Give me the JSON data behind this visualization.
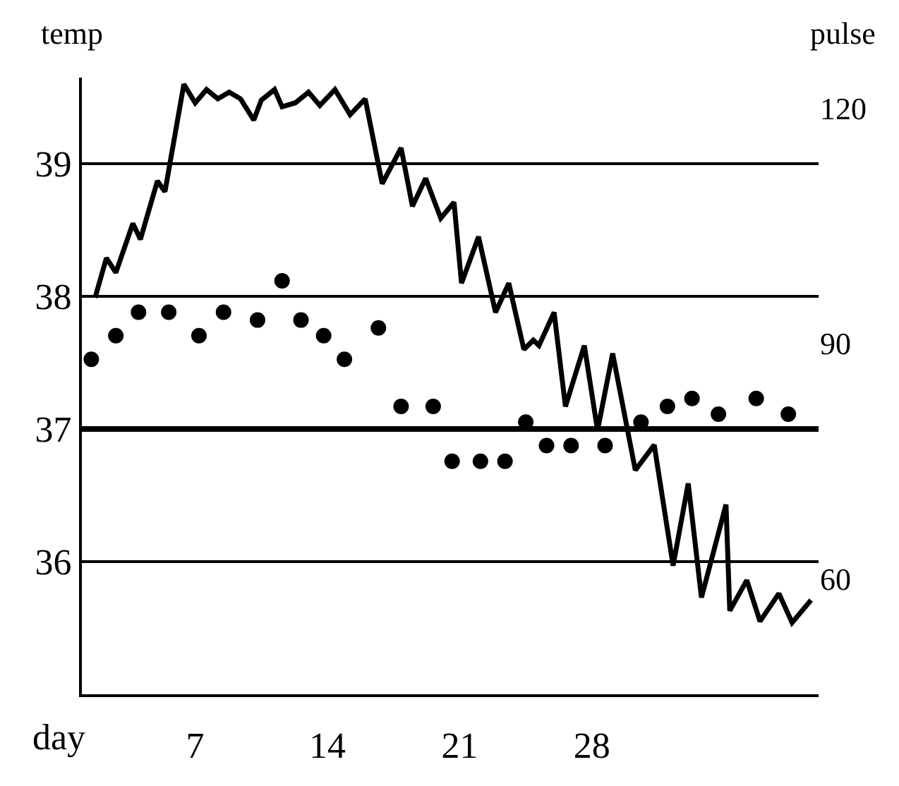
{
  "chart_data": {
    "type": "line",
    "xlabel": "day",
    "ylabel": "temp",
    "y2label": "pulse",
    "xlim": [
      1,
      40
    ],
    "xticks": [
      7,
      14,
      21,
      28
    ],
    "ylim": [
      35.0,
      39.65
    ],
    "yticks": [
      36,
      37,
      38,
      39
    ],
    "y2lim": [
      45.3,
      123.9
    ],
    "y2ticks": [
      60,
      90,
      120
    ],
    "grid": "y",
    "ref_lines": [
      {
        "axis": "y",
        "value": 37,
        "line_style": "solid",
        "color": "#000000"
      }
    ],
    "series": [
      {
        "type": "line",
        "color": "#000000",
        "marker": "none",
        "line_style": "solid",
        "x": [
          1.7,
          2.3,
          2.8,
          3.7,
          4.1,
          5.0,
          5.4,
          6.4,
          7.0,
          7.6,
          8.2,
          8.8,
          9.4,
          10.1,
          10.5,
          11.2,
          11.6,
          12.3,
          13.0,
          13.6,
          14.4,
          15.2,
          16.0,
          16.9,
          17.9,
          18.5,
          19.2,
          20.0,
          20.7,
          21.1,
          22.0,
          22.9,
          23.6,
          24.4,
          24.9,
          25.2,
          26.0,
          26.6,
          27.6,
          28.3,
          29.1,
          30.3,
          31.3,
          32.3,
          33.1,
          33.8,
          35.1,
          35.3,
          36.2,
          36.9,
          37.9,
          38.6,
          39.6
        ],
        "values": [
          37.99,
          38.29,
          38.18,
          38.55,
          38.43,
          38.87,
          38.79,
          39.6,
          39.46,
          39.56,
          39.49,
          39.54,
          39.49,
          39.33,
          39.48,
          39.56,
          39.43,
          39.46,
          39.54,
          39.44,
          39.56,
          39.37,
          39.49,
          38.85,
          39.12,
          38.68,
          38.89,
          38.59,
          38.71,
          38.1,
          38.45,
          37.88,
          38.1,
          37.6,
          37.67,
          37.63,
          37.88,
          37.17,
          37.63,
          36.99,
          37.57,
          36.69,
          36.88,
          35.97,
          36.59,
          35.73,
          36.43,
          35.63,
          35.86,
          35.55,
          35.76,
          35.54,
          35.71
        ]
      },
      {
        "type": "scatter",
        "axis": "y2",
        "color": "#000000",
        "marker": "circle",
        "x": [
          1.5,
          2.8,
          4.0,
          5.6,
          7.2,
          8.5,
          10.3,
          11.6,
          12.6,
          13.8,
          14.9,
          16.7,
          17.9,
          19.6,
          20.6,
          22.1,
          23.4,
          24.5,
          25.6,
          26.9,
          28.7,
          30.6,
          32.0,
          33.3,
          34.7,
          36.7,
          38.4
        ],
        "values": [
          88,
          91,
          94,
          94,
          91,
          94,
          93,
          98,
          93,
          91,
          88,
          92,
          82,
          82,
          75,
          75,
          75,
          80,
          77,
          77,
          77,
          80,
          82,
          83,
          81,
          83,
          81
        ]
      }
    ]
  }
}
